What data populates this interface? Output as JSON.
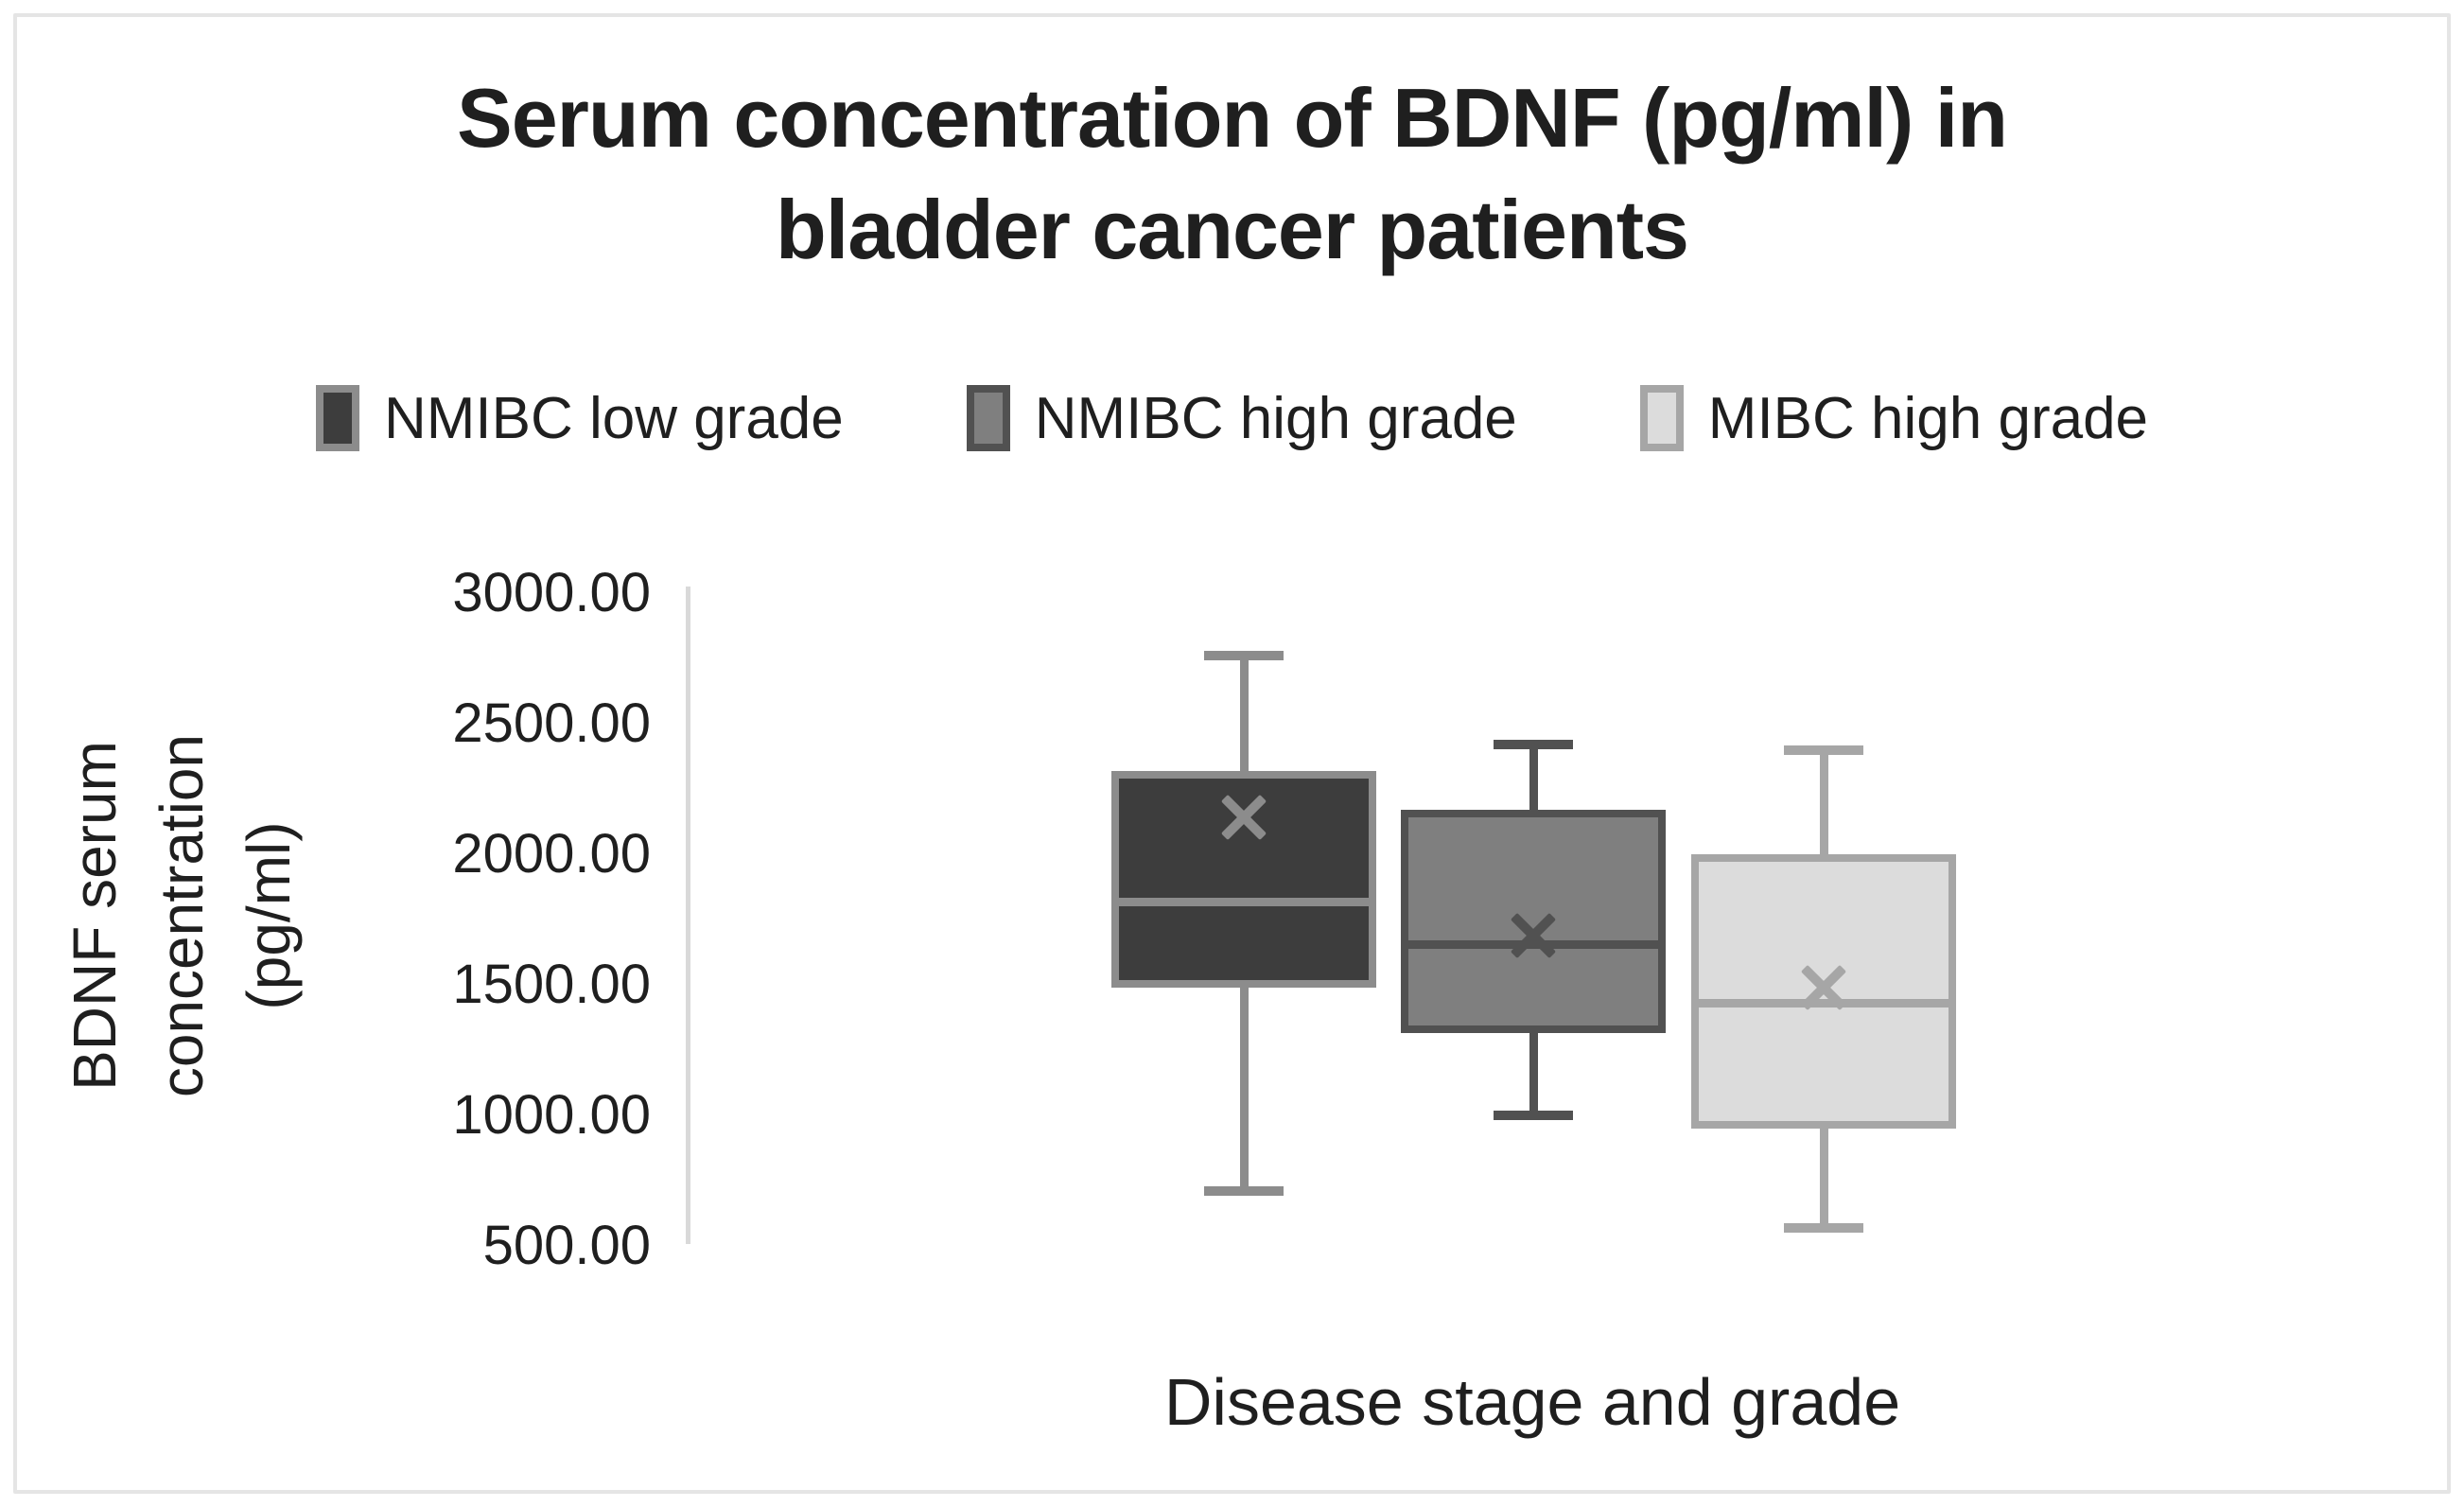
{
  "figure": {
    "title_line1": "Serum concentration of BDNF (pg/ml) in",
    "title_line2": "bladder cancer patients",
    "xlabel": "Disease stage and grade",
    "ylabel_line1": "BDNF serum",
    "ylabel_line2": "concentration",
    "ylabel_line3": "(pg/ml)"
  },
  "colors": {
    "text": "#1f1f1f",
    "axis_line": "#d9d9d9",
    "frame": "#e5e5e5",
    "background": "#ffffff"
  },
  "chart_data": {
    "type": "boxplot",
    "title": "Serum concentration of BDNF (pg/ml) in bladder cancer patients",
    "xlabel": "Disease stage and grade",
    "ylabel": "BDNF serum concentration (pg/ml)",
    "ylim": [
      500,
      3000
    ],
    "yticks": [
      3000,
      2500,
      2000,
      1500,
      1000,
      500
    ],
    "ytick_labels": [
      "3000.00",
      "2500.00",
      "2000.00",
      "1500.00",
      "1000.00",
      "500.00"
    ],
    "grid": false,
    "legend_position": "top-center",
    "series": [
      {
        "name": "NMIBC low grade",
        "min": 710,
        "q1": 1490,
        "median": 1820,
        "mean": 2140,
        "q3": 2320,
        "max": 2760,
        "fill": "#3d3d3d",
        "stroke": "#8c8c8c"
      },
      {
        "name": "NMIBC high grade",
        "min": 1000,
        "q1": 1315,
        "median": 1655,
        "mean": 1690,
        "q3": 2170,
        "max": 2420,
        "fill": "#7f7f7f",
        "stroke": "#515151"
      },
      {
        "name": "MIBC high grade",
        "min": 570,
        "q1": 950,
        "median": 1430,
        "mean": 1490,
        "q3": 2000,
        "max": 2400,
        "fill": "#dcdcdc",
        "stroke": "#a6a6a6"
      }
    ]
  }
}
